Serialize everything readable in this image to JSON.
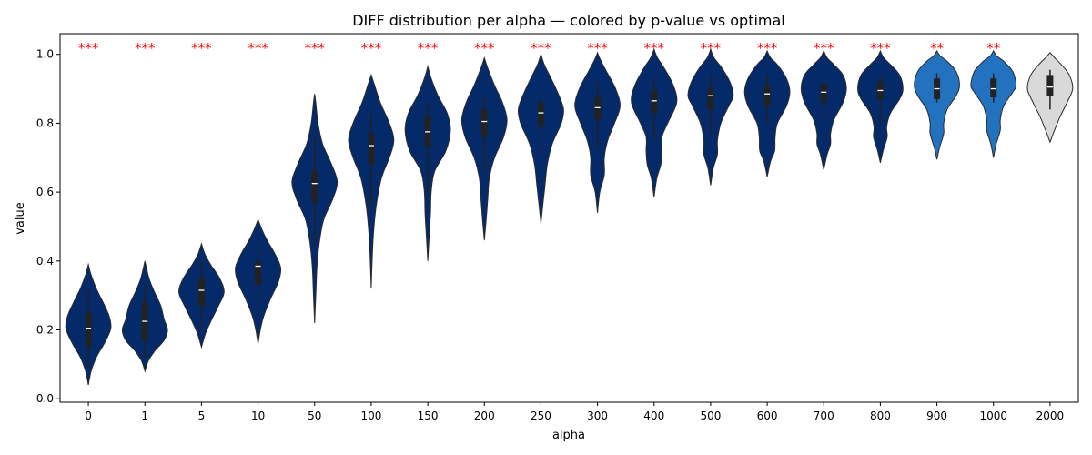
{
  "chart_data": {
    "type": "violin",
    "title": "DIFF distribution per alpha — colored by p-value vs optimal",
    "xlabel": "alpha",
    "ylabel": "value",
    "ylim": [
      -0.01,
      1.06
    ],
    "yticks": [
      "0.0",
      "0.2",
      "0.4",
      "0.6",
      "0.8",
      "1.0"
    ],
    "grid": false,
    "colors": {
      "dark": "#052a6a",
      "mid": "#2272bf",
      "light": "#d9d9d9",
      "significance": "#ff0000"
    },
    "categories": [
      "0",
      "1",
      "5",
      "10",
      "50",
      "100",
      "150",
      "200",
      "250",
      "300",
      "400",
      "500",
      "600",
      "700",
      "800",
      "900",
      "1000",
      "2000"
    ],
    "violins": [
      {
        "alpha": "0",
        "min": 0.04,
        "max": 0.39,
        "q1": 0.15,
        "median": 0.205,
        "q3": 0.25,
        "whisker_low": 0.09,
        "whisker_high": 0.32,
        "shape": [
          [
            0.04,
            0.0
          ],
          [
            0.08,
            0.12
          ],
          [
            0.12,
            0.35
          ],
          [
            0.16,
            0.7
          ],
          [
            0.19,
            0.92
          ],
          [
            0.21,
            1.0
          ],
          [
            0.24,
            0.92
          ],
          [
            0.28,
            0.65
          ],
          [
            0.32,
            0.35
          ],
          [
            0.36,
            0.12
          ],
          [
            0.39,
            0.0
          ]
        ],
        "significance": "***",
        "color": "#052a6a"
      },
      {
        "alpha": "1",
        "min": 0.08,
        "max": 0.4,
        "q1": 0.17,
        "median": 0.225,
        "q3": 0.28,
        "whisker_low": 0.12,
        "whisker_high": 0.33,
        "shape": [
          [
            0.08,
            0.0
          ],
          [
            0.11,
            0.15
          ],
          [
            0.14,
            0.45
          ],
          [
            0.17,
            0.85
          ],
          [
            0.2,
            1.0
          ],
          [
            0.23,
            0.85
          ],
          [
            0.27,
            0.7
          ],
          [
            0.31,
            0.42
          ],
          [
            0.35,
            0.18
          ],
          [
            0.4,
            0.0
          ]
        ],
        "significance": "***",
        "color": "#052a6a"
      },
      {
        "alpha": "5",
        "min": 0.15,
        "max": 0.45,
        "q1": 0.27,
        "median": 0.315,
        "q3": 0.35,
        "whisker_low": 0.2,
        "whisker_high": 0.4,
        "shape": [
          [
            0.15,
            0.0
          ],
          [
            0.19,
            0.18
          ],
          [
            0.23,
            0.45
          ],
          [
            0.27,
            0.75
          ],
          [
            0.31,
            1.0
          ],
          [
            0.35,
            0.8
          ],
          [
            0.39,
            0.4
          ],
          [
            0.42,
            0.15
          ],
          [
            0.45,
            0.0
          ]
        ],
        "significance": "***",
        "color": "#052a6a"
      },
      {
        "alpha": "10",
        "min": 0.16,
        "max": 0.52,
        "q1": 0.33,
        "median": 0.385,
        "q3": 0.4,
        "whisker_low": 0.24,
        "whisker_high": 0.46,
        "shape": [
          [
            0.16,
            0.0
          ],
          [
            0.2,
            0.1
          ],
          [
            0.24,
            0.25
          ],
          [
            0.29,
            0.55
          ],
          [
            0.34,
            0.9
          ],
          [
            0.38,
            1.0
          ],
          [
            0.42,
            0.75
          ],
          [
            0.46,
            0.4
          ],
          [
            0.49,
            0.18
          ],
          [
            0.52,
            0.0
          ]
        ],
        "significance": "***",
        "color": "#052a6a"
      },
      {
        "alpha": "50",
        "min": 0.22,
        "max": 0.885,
        "q1": 0.57,
        "median": 0.625,
        "q3": 0.66,
        "whisker_low": 0.45,
        "whisker_high": 0.76,
        "shape": [
          [
            0.22,
            0.0
          ],
          [
            0.3,
            0.05
          ],
          [
            0.38,
            0.1
          ],
          [
            0.45,
            0.2
          ],
          [
            0.52,
            0.4
          ],
          [
            0.58,
            0.8
          ],
          [
            0.63,
            1.0
          ],
          [
            0.68,
            0.75
          ],
          [
            0.74,
            0.35
          ],
          [
            0.8,
            0.15
          ],
          [
            0.86,
            0.05
          ],
          [
            0.885,
            0.0
          ]
        ],
        "significance": "***",
        "color": "#052a6a"
      },
      {
        "alpha": "100",
        "min": 0.32,
        "max": 0.94,
        "q1": 0.68,
        "median": 0.735,
        "q3": 0.77,
        "whisker_low": 0.56,
        "whisker_high": 0.83,
        "shape": [
          [
            0.32,
            0.0
          ],
          [
            0.4,
            0.04
          ],
          [
            0.48,
            0.1
          ],
          [
            0.56,
            0.22
          ],
          [
            0.64,
            0.45
          ],
          [
            0.7,
            0.8
          ],
          [
            0.75,
            1.0
          ],
          [
            0.8,
            0.8
          ],
          [
            0.86,
            0.4
          ],
          [
            0.91,
            0.15
          ],
          [
            0.94,
            0.0
          ]
        ],
        "significance": "***",
        "color": "#052a6a"
      },
      {
        "alpha": "150",
        "min": 0.4,
        "max": 0.965,
        "q1": 0.73,
        "median": 0.775,
        "q3": 0.82,
        "whisker_low": 0.6,
        "whisker_high": 0.86,
        "shape": [
          [
            0.4,
            0.0
          ],
          [
            0.47,
            0.06
          ],
          [
            0.54,
            0.12
          ],
          [
            0.6,
            0.15
          ],
          [
            0.66,
            0.3
          ],
          [
            0.72,
            0.8
          ],
          [
            0.78,
            1.0
          ],
          [
            0.83,
            0.85
          ],
          [
            0.88,
            0.45
          ],
          [
            0.93,
            0.15
          ],
          [
            0.965,
            0.0
          ]
        ],
        "significance": "***",
        "color": "#052a6a"
      },
      {
        "alpha": "200",
        "min": 0.46,
        "max": 0.99,
        "q1": 0.76,
        "median": 0.805,
        "q3": 0.84,
        "whisker_low": 0.66,
        "whisker_high": 0.88,
        "shape": [
          [
            0.46,
            0.0
          ],
          [
            0.52,
            0.08
          ],
          [
            0.58,
            0.15
          ],
          [
            0.64,
            0.22
          ],
          [
            0.7,
            0.45
          ],
          [
            0.76,
            0.85
          ],
          [
            0.81,
            1.0
          ],
          [
            0.86,
            0.8
          ],
          [
            0.91,
            0.45
          ],
          [
            0.96,
            0.15
          ],
          [
            0.99,
            0.0
          ]
        ],
        "significance": "***",
        "color": "#052a6a"
      },
      {
        "alpha": "250",
        "min": 0.51,
        "max": 1.0,
        "q1": 0.79,
        "median": 0.83,
        "q3": 0.86,
        "whisker_low": 0.7,
        "whisker_high": 0.9,
        "shape": [
          [
            0.51,
            0.0
          ],
          [
            0.56,
            0.08
          ],
          [
            0.62,
            0.18
          ],
          [
            0.68,
            0.28
          ],
          [
            0.74,
            0.5
          ],
          [
            0.8,
            0.9
          ],
          [
            0.84,
            1.0
          ],
          [
            0.88,
            0.8
          ],
          [
            0.93,
            0.45
          ],
          [
            0.97,
            0.15
          ],
          [
            1.0,
            0.0
          ]
        ],
        "significance": "***",
        "color": "#052a6a"
      },
      {
        "alpha": "300",
        "min": 0.54,
        "max": 1.005,
        "q1": 0.81,
        "median": 0.845,
        "q3": 0.875,
        "whisker_low": 0.72,
        "whisker_high": 0.92,
        "shape": [
          [
            0.54,
            0.0
          ],
          [
            0.6,
            0.1
          ],
          [
            0.65,
            0.3
          ],
          [
            0.7,
            0.3
          ],
          [
            0.75,
            0.45
          ],
          [
            0.8,
            0.75
          ],
          [
            0.85,
            1.0
          ],
          [
            0.9,
            0.8
          ],
          [
            0.95,
            0.4
          ],
          [
            0.985,
            0.12
          ],
          [
            1.005,
            0.0
          ]
        ],
        "significance": "***",
        "color": "#052a6a"
      },
      {
        "alpha": "400",
        "min": 0.585,
        "max": 1.015,
        "q1": 0.83,
        "median": 0.865,
        "q3": 0.895,
        "whisker_low": 0.75,
        "whisker_high": 0.93,
        "shape": [
          [
            0.585,
            0.0
          ],
          [
            0.64,
            0.12
          ],
          [
            0.68,
            0.3
          ],
          [
            0.72,
            0.35
          ],
          [
            0.76,
            0.35
          ],
          [
            0.8,
            0.6
          ],
          [
            0.86,
            1.0
          ],
          [
            0.91,
            0.85
          ],
          [
            0.96,
            0.45
          ],
          [
            0.99,
            0.15
          ],
          [
            1.015,
            0.0
          ]
        ],
        "significance": "***",
        "color": "#052a6a"
      },
      {
        "alpha": "500",
        "min": 0.62,
        "max": 1.015,
        "q1": 0.84,
        "median": 0.88,
        "q3": 0.9,
        "whisker_low": 0.77,
        "whisker_high": 0.94,
        "shape": [
          [
            0.62,
            0.0
          ],
          [
            0.67,
            0.12
          ],
          [
            0.71,
            0.3
          ],
          [
            0.75,
            0.3
          ],
          [
            0.8,
            0.45
          ],
          [
            0.85,
            0.8
          ],
          [
            0.88,
            1.0
          ],
          [
            0.92,
            0.85
          ],
          [
            0.96,
            0.5
          ],
          [
            0.99,
            0.15
          ],
          [
            1.015,
            0.0
          ]
        ],
        "significance": "***",
        "color": "#052a6a"
      },
      {
        "alpha": "600",
        "min": 0.645,
        "max": 1.01,
        "q1": 0.85,
        "median": 0.885,
        "q3": 0.91,
        "whisker_low": 0.8,
        "whisker_high": 0.94,
        "shape": [
          [
            0.645,
            0.0
          ],
          [
            0.69,
            0.15
          ],
          [
            0.72,
            0.33
          ],
          [
            0.76,
            0.35
          ],
          [
            0.8,
            0.45
          ],
          [
            0.85,
            0.85
          ],
          [
            0.89,
            1.0
          ],
          [
            0.93,
            0.85
          ],
          [
            0.97,
            0.45
          ],
          [
            0.99,
            0.15
          ],
          [
            1.01,
            0.0
          ]
        ],
        "significance": "***",
        "color": "#052a6a"
      },
      {
        "alpha": "700",
        "min": 0.665,
        "max": 1.01,
        "q1": 0.86,
        "median": 0.89,
        "q3": 0.915,
        "whisker_low": 0.8,
        "whisker_high": 0.94,
        "shape": [
          [
            0.665,
            0.0
          ],
          [
            0.71,
            0.15
          ],
          [
            0.74,
            0.3
          ],
          [
            0.77,
            0.3
          ],
          [
            0.81,
            0.45
          ],
          [
            0.86,
            0.85
          ],
          [
            0.9,
            1.0
          ],
          [
            0.94,
            0.85
          ],
          [
            0.97,
            0.45
          ],
          [
            0.99,
            0.15
          ],
          [
            1.01,
            0.0
          ]
        ],
        "significance": "***",
        "color": "#052a6a"
      },
      {
        "alpha": "800",
        "min": 0.685,
        "max": 1.01,
        "q1": 0.87,
        "median": 0.895,
        "q3": 0.92,
        "whisker_low": 0.8,
        "whisker_high": 0.94,
        "shape": [
          [
            0.685,
            0.0
          ],
          [
            0.72,
            0.12
          ],
          [
            0.76,
            0.3
          ],
          [
            0.79,
            0.28
          ],
          [
            0.83,
            0.45
          ],
          [
            0.87,
            0.85
          ],
          [
            0.9,
            1.0
          ],
          [
            0.94,
            0.85
          ],
          [
            0.97,
            0.45
          ],
          [
            0.99,
            0.15
          ],
          [
            1.01,
            0.0
          ]
        ],
        "significance": "***",
        "color": "#052a6a"
      },
      {
        "alpha": "900",
        "min": 0.695,
        "max": 1.01,
        "q1": 0.87,
        "median": 0.9,
        "q3": 0.93,
        "whisker_low": 0.86,
        "whisker_high": 0.945,
        "shape": [
          [
            0.695,
            0.0
          ],
          [
            0.73,
            0.12
          ],
          [
            0.77,
            0.3
          ],
          [
            0.8,
            0.3
          ],
          [
            0.84,
            0.45
          ],
          [
            0.88,
            0.85
          ],
          [
            0.91,
            1.0
          ],
          [
            0.95,
            0.85
          ],
          [
            0.98,
            0.45
          ],
          [
            0.995,
            0.15
          ],
          [
            1.01,
            0.0
          ]
        ],
        "significance": "**",
        "color": "#2272bf"
      },
      {
        "alpha": "1000",
        "min": 0.7,
        "max": 1.01,
        "q1": 0.875,
        "median": 0.9,
        "q3": 0.93,
        "whisker_low": 0.86,
        "whisker_high": 0.945,
        "shape": [
          [
            0.7,
            0.0
          ],
          [
            0.74,
            0.12
          ],
          [
            0.78,
            0.3
          ],
          [
            0.81,
            0.3
          ],
          [
            0.85,
            0.45
          ],
          [
            0.89,
            0.85
          ],
          [
            0.91,
            1.0
          ],
          [
            0.95,
            0.85
          ],
          [
            0.98,
            0.45
          ],
          [
            0.995,
            0.15
          ],
          [
            1.01,
            0.0
          ]
        ],
        "significance": "**",
        "color": "#2272bf"
      },
      {
        "alpha": "2000",
        "min": 0.745,
        "max": 1.005,
        "q1": 0.88,
        "median": 0.905,
        "q3": 0.94,
        "whisker_low": 0.84,
        "whisker_high": 0.955,
        "shape": [
          [
            0.745,
            0.0
          ],
          [
            0.78,
            0.2
          ],
          [
            0.82,
            0.45
          ],
          [
            0.86,
            0.75
          ],
          [
            0.9,
            1.0
          ],
          [
            0.94,
            0.85
          ],
          [
            0.97,
            0.5
          ],
          [
            0.99,
            0.2
          ],
          [
            1.005,
            0.0
          ]
        ],
        "significance": "",
        "color": "#d9d9d9"
      }
    ]
  }
}
